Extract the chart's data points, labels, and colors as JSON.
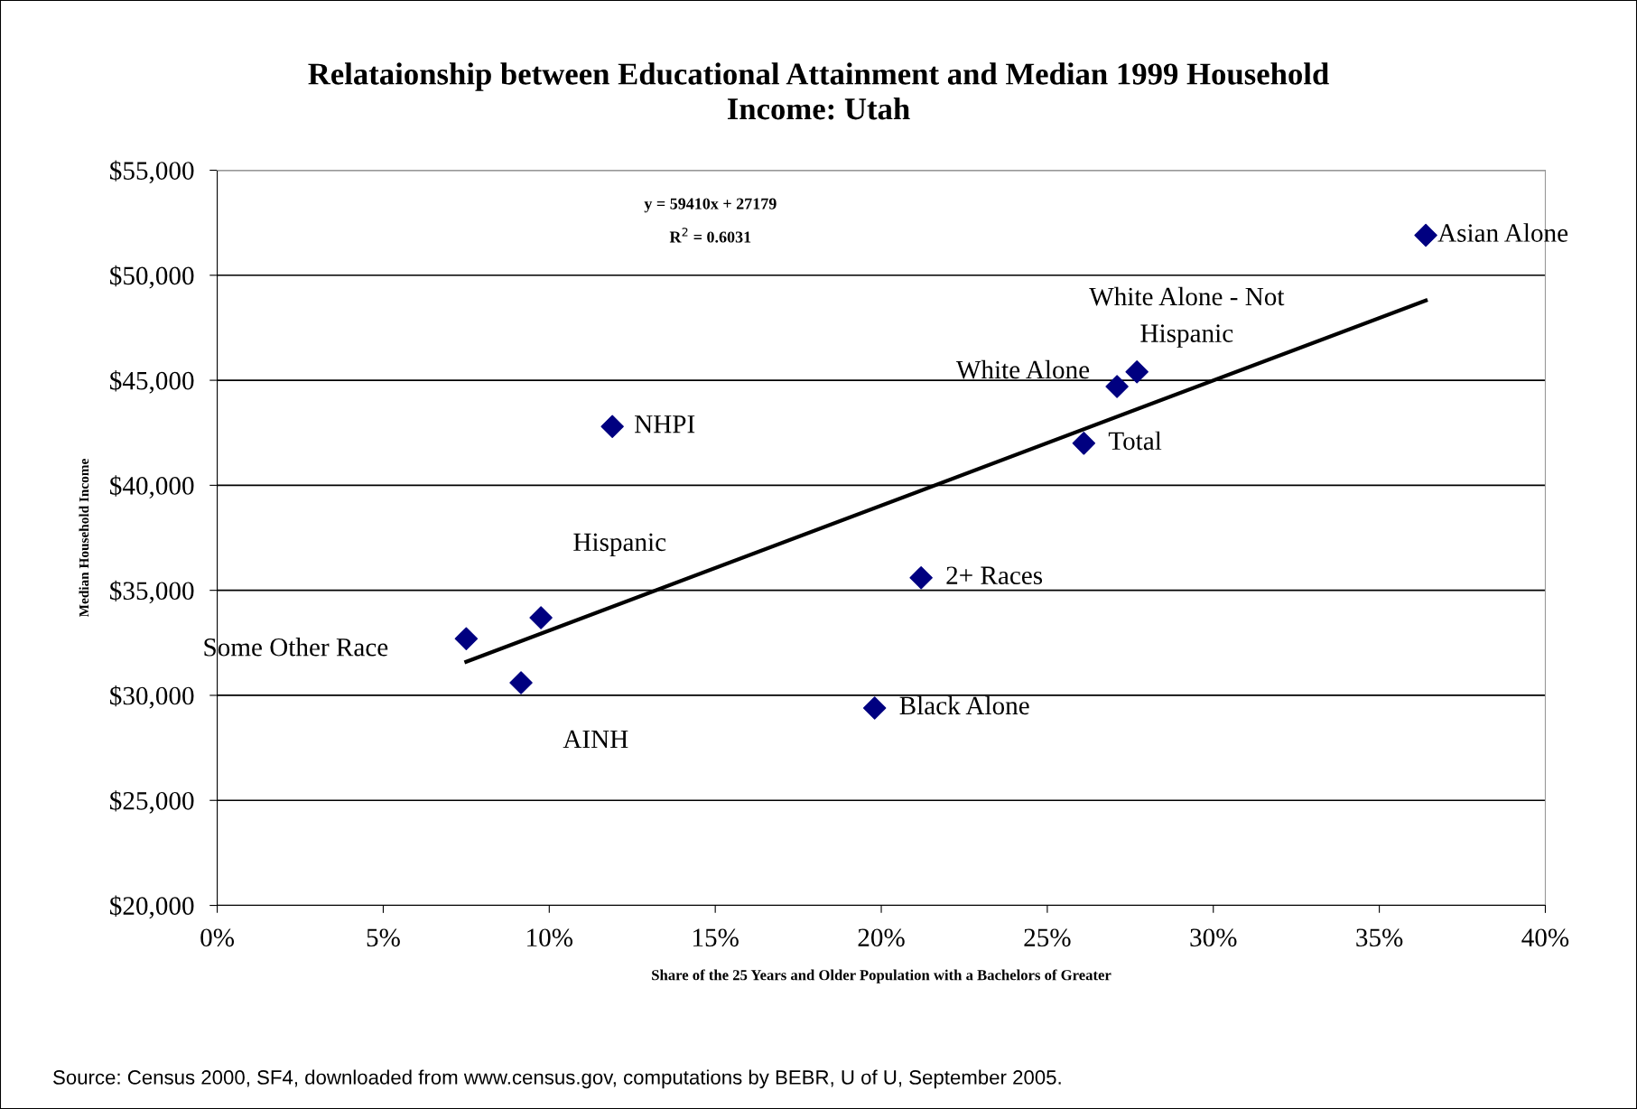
{
  "chart_data": {
    "type": "scatter",
    "title": "Relataionship between Educational Attainment and Median 1999 Household\nIncome: Utah",
    "xlabel": "Share of the 25 Years and Older Population with a Bachelors of Greater",
    "ylabel": "Median Household Income",
    "xlim": [
      0,
      0.4
    ],
    "xticks": [
      {
        "value": 0,
        "label": "0%"
      },
      {
        "value": 0.05,
        "label": "5%"
      },
      {
        "value": 0.1,
        "label": "10%"
      },
      {
        "value": 0.15,
        "label": "15%"
      },
      {
        "value": 0.2,
        "label": "20%"
      },
      {
        "value": 0.25,
        "label": "25%"
      },
      {
        "value": 0.3,
        "label": "30%"
      },
      {
        "value": 0.35,
        "label": "35%"
      },
      {
        "value": 0.4,
        "label": "40%"
      }
    ],
    "ylim": [
      20000,
      55000
    ],
    "yticks": [
      {
        "value": 20000,
        "label": "$20,000"
      },
      {
        "value": 25000,
        "label": "$25,000"
      },
      {
        "value": 30000,
        "label": "$30,000"
      },
      {
        "value": 35000,
        "label": "$35,000"
      },
      {
        "value": 40000,
        "label": "$40,000"
      },
      {
        "value": 45000,
        "label": "$45,000"
      },
      {
        "value": 50000,
        "label": "$50,000"
      },
      {
        "value": 55000,
        "label": "$55,000"
      }
    ],
    "grid": "y",
    "legend": false,
    "series": [
      {
        "color": "#000080",
        "marker": "diamond",
        "x": [
          0.075,
          0.0915,
          0.0975,
          0.119,
          0.198,
          0.212,
          0.261,
          0.271,
          0.277,
          0.364
        ],
        "values": [
          32700,
          30600,
          33700,
          42800,
          29400,
          35600,
          42000,
          44700,
          45400,
          51900
        ]
      },
      {
        "type": "line",
        "color": "#000000",
        "line_style": "solid",
        "marker": "none",
        "x": [
          0.075,
          0.364
        ],
        "values": [
          31600,
          48800
        ]
      }
    ],
    "annotations": [
      "y = 59410x + 27179",
      "R$^{2}$ = 0.6031",
      "Source: Census 2000, SF4, downloaded from www.census.gov, computations by BEBR, U of U, September 2005.",
      "Some Other Race",
      "AINH",
      "Hispanic",
      "White Alone - Not\nHispanic",
      {
        "text": "NHPI",
        "x": 0.119,
        "y": 42800
      },
      {
        "text": "Black Alone",
        "x": 0.198,
        "y": 29400
      },
      {
        "text": "2+ Races",
        "x": 0.212,
        "y": 35600
      },
      {
        "text": "Total",
        "x": 0.261,
        "y": 42000
      },
      {
        "text": "White Alone",
        "x": 0.271,
        "y": 44700
      },
      {
        "text": "Asian Alone",
        "x": 0.364,
        "y": 51900
      }
    ]
  }
}
